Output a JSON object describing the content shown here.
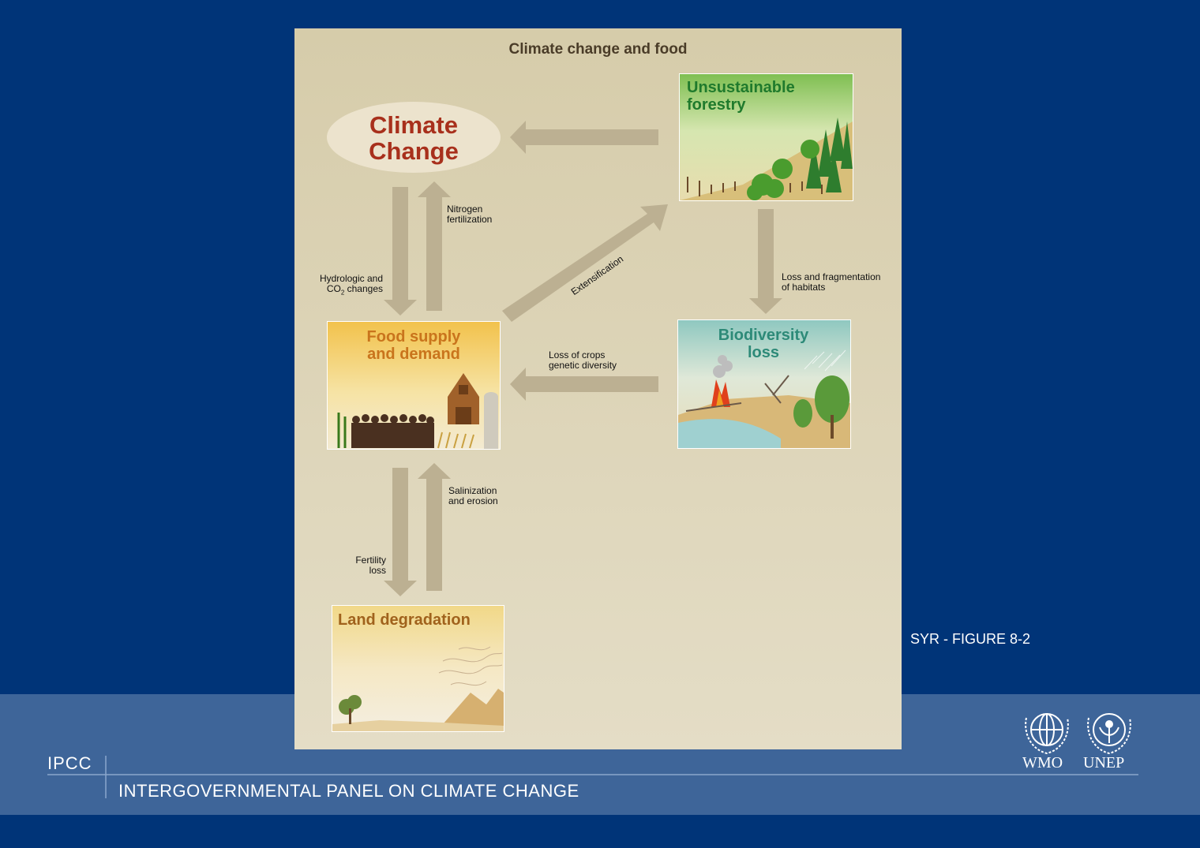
{
  "title": "Climate change and food",
  "nodes": {
    "climate_change": {
      "line1": "Climate",
      "line2": "Change"
    },
    "forestry": {
      "line1": "Unsustainable",
      "line2": "forestry"
    },
    "food": {
      "line1": "Food supply",
      "line2": "and demand"
    },
    "biodiversity": {
      "line1": "Biodiversity",
      "line2": "loss"
    },
    "land": {
      "label": "Land degradation"
    }
  },
  "edges": {
    "nitrogen": {
      "line1": "Nitrogen",
      "line2": "fertilization"
    },
    "hydrologic": {
      "line1": "Hydrologic and",
      "line2_pre": "CO",
      "line2_sub": "2",
      "line2_post": " changes"
    },
    "extensification": "Extensification",
    "habitats": {
      "line1": "Loss and fragmentation",
      "line2": "of habitats"
    },
    "crops": {
      "line1": "Loss of crops",
      "line2": "genetic diversity"
    },
    "salinization": {
      "line1": "Salinization",
      "line2": "and erosion"
    },
    "fertility": {
      "line1": "Fertility",
      "line2": "loss"
    }
  },
  "figure_ref": "SYR - FIGURE 8-2",
  "footer": {
    "org_short": "IPCC",
    "org_full": "INTERGOVERNMENTAL PANEL ON CLIMATE CHANGE",
    "logo_wmo": "WMO",
    "logo_unep": "UNEP"
  },
  "colors": {
    "background": "#003478",
    "band": "#3e6599",
    "panel": "#d6ccaa",
    "arrow": "#bcb092",
    "climate_text": "#a8301c",
    "forestry_text": "#1f7a2c",
    "food_text": "#c9741c",
    "biodiversity_text": "#2d8a78",
    "land_text": "#a0621c"
  }
}
